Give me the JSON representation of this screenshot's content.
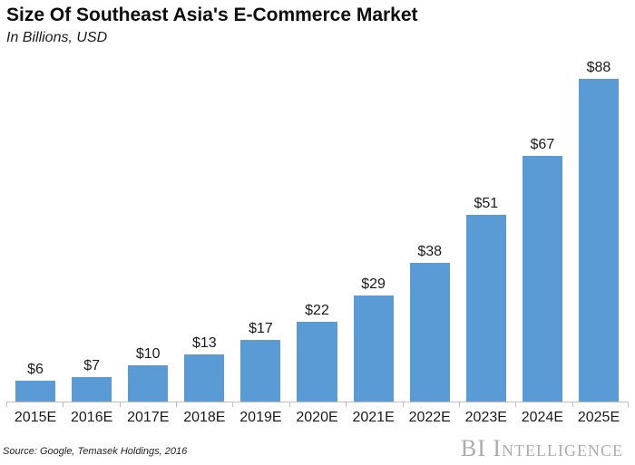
{
  "header": {
    "title": "Size Of Southeast Asia's E-Commerce Market",
    "subtitle": "In Billions, USD"
  },
  "footer": {
    "source": "Source: Google, Temasek Holdings, 2016",
    "watermark": "BI Intelligence"
  },
  "chart_data": {
    "type": "bar",
    "title": "Size Of Southeast Asia's E-Commerce Market",
    "subtitle": "In Billions, USD",
    "categories": [
      "2015E",
      "2016E",
      "2017E",
      "2018E",
      "2019E",
      "2020E",
      "2021E",
      "2022E",
      "2023E",
      "2024E",
      "2025E"
    ],
    "values": [
      6,
      7,
      10,
      13,
      17,
      22,
      29,
      38,
      51,
      67,
      88
    ],
    "value_labels": [
      "$6",
      "$7",
      "$10",
      "$13",
      "$17",
      "$22",
      "$29",
      "$38",
      "$51",
      "$67",
      "$88"
    ],
    "xlabel": "",
    "ylabel": "",
    "ylim": [
      0,
      91
    ],
    "grid": false,
    "legend": false,
    "data_labels_position": "above-bar",
    "bar_color": "#5B9BD5",
    "axis_color": "#BFBFBF",
    "label_color": "#1A1A1A",
    "source": "Source: Google, Temasek Holdings, 2016"
  }
}
